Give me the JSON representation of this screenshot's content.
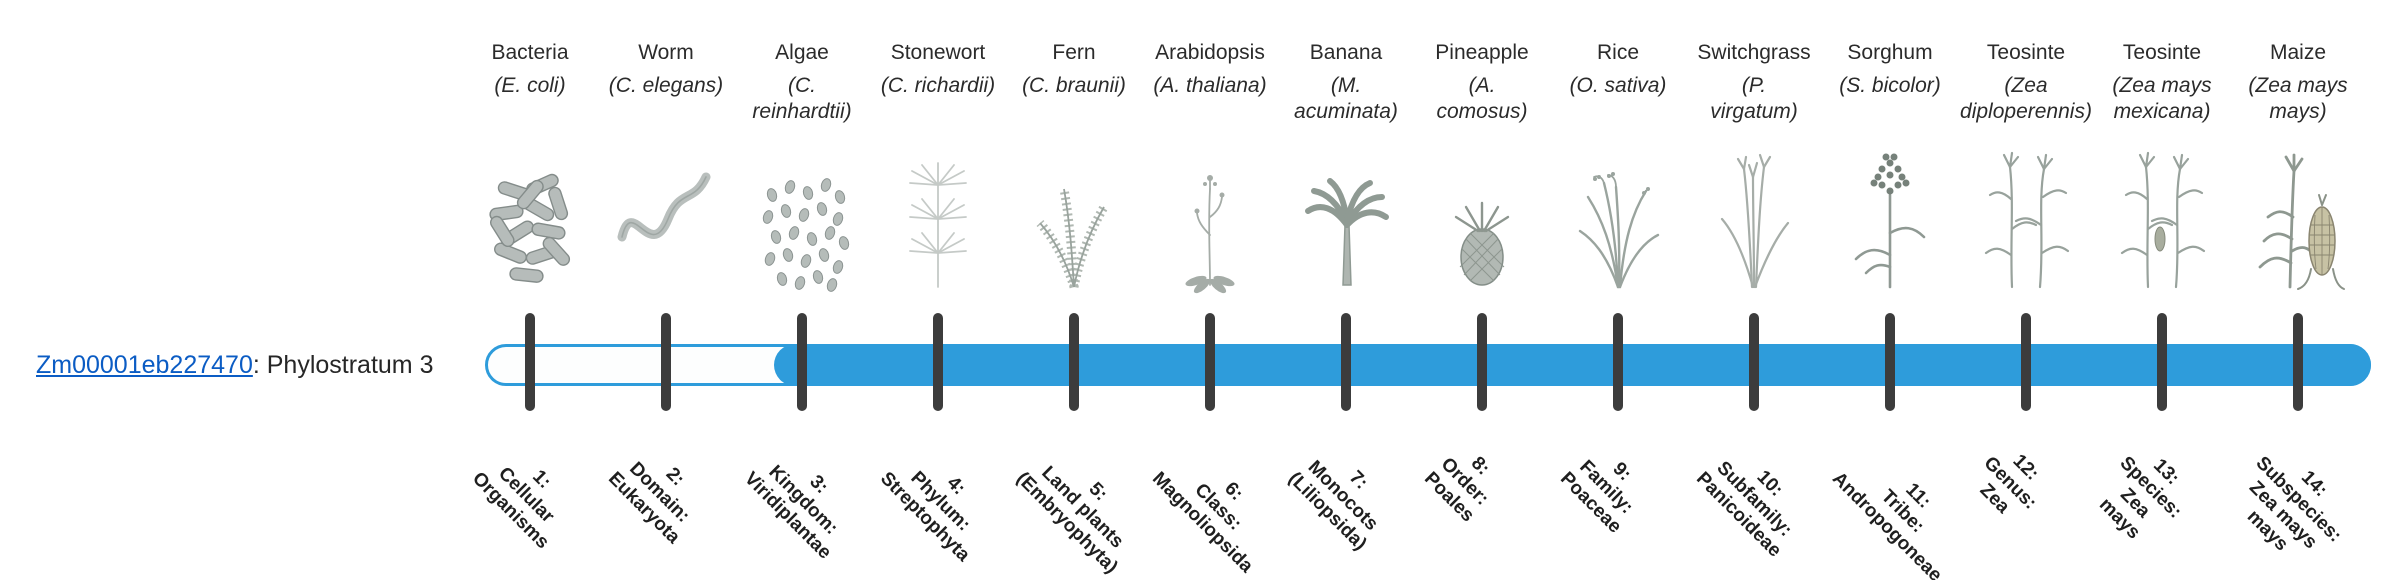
{
  "gene": {
    "id": "Zm00001eb227470",
    "suffix": ": Phylostratum 3",
    "phylostratum_label": "Phylostratum 3"
  },
  "link_color": "#0b5cc4",
  "timeline": {
    "bar_color": "#2e9cdb",
    "bar_outline_color": "#2e9cdb",
    "unfilled_color": "#fdfefe",
    "tick_color": "#3c3c3c",
    "fill_start_stratum": 3,
    "total_strata": 14
  },
  "strata": [
    {
      "index": 1,
      "name": "Bacteria",
      "sci_lines": [
        "(E. coli)"
      ],
      "tick_label_lines": [
        "1:",
        "Cellular",
        "Organisms"
      ],
      "icon": "bacteria"
    },
    {
      "index": 2,
      "name": "Worm",
      "sci_lines": [
        "(C. elegans)"
      ],
      "tick_label_lines": [
        "2:",
        "Domain:",
        "Eukaryota"
      ],
      "icon": "worm"
    },
    {
      "index": 3,
      "name": "Algae",
      "sci_lines": [
        "(C.",
        "reinhardtii)"
      ],
      "tick_label_lines": [
        "3:",
        "Kingdom:",
        "Viridiplantae"
      ],
      "icon": "algae"
    },
    {
      "index": 4,
      "name": "Stonewort",
      "sci_lines": [
        "(C. richardii)"
      ],
      "tick_label_lines": [
        "4:",
        "Phylum:",
        "Streptophyta"
      ],
      "icon": "stonewort"
    },
    {
      "index": 5,
      "name": "Fern",
      "sci_lines": [
        "(C. braunii)"
      ],
      "tick_label_lines": [
        "5:",
        "Land plants",
        "(Embryophyta)"
      ],
      "icon": "fern"
    },
    {
      "index": 6,
      "name": "Arabidopsis",
      "sci_lines": [
        "(A. thaliana)"
      ],
      "tick_label_lines": [
        "6:",
        "Class:",
        "Magnoliopsida"
      ],
      "icon": "arabidopsis"
    },
    {
      "index": 7,
      "name": "Banana",
      "sci_lines": [
        "(M.",
        "acuminata)"
      ],
      "tick_label_lines": [
        "7:",
        "Monocots",
        "(Liliopsida)"
      ],
      "icon": "banana"
    },
    {
      "index": 8,
      "name": "Pineapple",
      "sci_lines": [
        "(A.",
        "comosus)"
      ],
      "tick_label_lines": [
        "8:",
        "Order:",
        "Poales"
      ],
      "icon": "pineapple"
    },
    {
      "index": 9,
      "name": "Rice",
      "sci_lines": [
        "(O. sativa)"
      ],
      "tick_label_lines": [
        "9:",
        "Family:",
        "Poaceae"
      ],
      "icon": "rice"
    },
    {
      "index": 10,
      "name": "Switchgrass",
      "sci_lines": [
        "(P.",
        "virgatum)"
      ],
      "tick_label_lines": [
        "10:",
        "Subfamily:",
        "Panicoideae"
      ],
      "icon": "switchgrass"
    },
    {
      "index": 11,
      "name": "Sorghum",
      "sci_lines": [
        "(S. bicolor)"
      ],
      "tick_label_lines": [
        "11:",
        "Tribe:",
        "Andropogoneae"
      ],
      "icon": "sorghum"
    },
    {
      "index": 12,
      "name": "Teosinte",
      "sci_lines": [
        "(Zea",
        "diploperennis)"
      ],
      "tick_label_lines": [
        "12:",
        "Genus:",
        "Zea"
      ],
      "icon": "teosinte"
    },
    {
      "index": 13,
      "name": "Teosinte",
      "sci_lines": [
        "(Zea mays",
        "mexicana)"
      ],
      "tick_label_lines": [
        "13:",
        "Species:",
        "Zea",
        "mays"
      ],
      "icon": "teosinte2"
    },
    {
      "index": 14,
      "name": "Maize",
      "sci_lines": [
        "(Zea mays",
        "mays)"
      ],
      "tick_label_lines": [
        "14:",
        "Subspecies:",
        "Zea mays",
        "mays"
      ],
      "icon": "maize"
    }
  ]
}
